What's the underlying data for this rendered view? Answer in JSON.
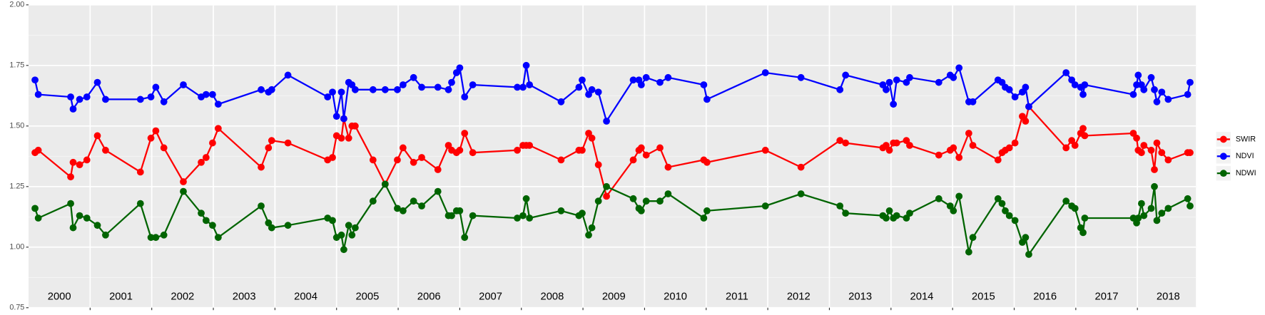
{
  "chart_data": {
    "type": "line",
    "x": [
      2000.105,
      2000.158,
      2000.684,
      2000.724,
      2000.829,
      2000.947,
      2001.118,
      2001.25,
      2001.816,
      2001.987,
      2002.066,
      2002.197,
      2002.513,
      2002.803,
      2002.882,
      2002.987,
      2003.079,
      2003.776,
      2003.895,
      2003.947,
      2004.211,
      2004.855,
      2004.934,
      2005.0,
      2005.079,
      2005.118,
      2005.197,
      2005.25,
      2005.303,
      2005.592,
      2005.789,
      2005.987,
      2006.079,
      2006.25,
      2006.382,
      2006.645,
      2006.816,
      2006.868,
      2006.947,
      2007.0,
      2007.079,
      2007.211,
      2007.934,
      2008.026,
      2008.079,
      2008.132,
      2008.645,
      2008.934,
      2008.987,
      2009.092,
      2009.145,
      2009.25,
      2009.382,
      2009.816,
      2009.908,
      2009.947,
      2010.026,
      2010.25,
      2010.382,
      2010.961,
      2011.013,
      2011.961,
      2012.539,
      2013.171,
      2013.263,
      2013.868,
      2013.921,
      2013.974,
      2014.039,
      2014.092,
      2014.25,
      2014.303,
      2014.776,
      2014.961,
      2015.013,
      2015.105,
      2015.263,
      2015.329,
      2015.737,
      2015.803,
      2015.855,
      2015.921,
      2016.013,
      2016.132,
      2016.184,
      2016.237,
      2016.842,
      2016.934,
      2016.987,
      2017.079,
      2017.118,
      2017.145,
      2017.934,
      2017.987,
      2018.013,
      2018.066,
      2018.105,
      2018.224,
      2018.276,
      2018.316,
      2018.395,
      2018.5,
      2018.816,
      2018.855
    ],
    "series": [
      {
        "name": "SWIR",
        "color": "#ff0000",
        "values": [
          1.39,
          1.4,
          1.29,
          1.35,
          1.34,
          1.36,
          1.46,
          1.4,
          1.31,
          1.45,
          1.48,
          1.41,
          1.27,
          1.35,
          1.37,
          1.43,
          1.49,
          1.33,
          1.41,
          1.44,
          1.43,
          1.36,
          1.37,
          1.46,
          1.45,
          1.53,
          1.45,
          1.5,
          1.5,
          1.36,
          1.26,
          1.36,
          1.41,
          1.35,
          1.37,
          1.32,
          1.42,
          1.4,
          1.39,
          1.4,
          1.47,
          1.39,
          1.4,
          1.42,
          1.42,
          1.42,
          1.36,
          1.4,
          1.4,
          1.47,
          1.45,
          1.34,
          1.21,
          1.36,
          1.4,
          1.41,
          1.38,
          1.41,
          1.33,
          1.36,
          1.35,
          1.4,
          1.33,
          1.44,
          1.43,
          1.41,
          1.42,
          1.4,
          1.43,
          1.43,
          1.44,
          1.42,
          1.38,
          1.4,
          1.41,
          1.37,
          1.47,
          1.42,
          1.36,
          1.39,
          1.4,
          1.41,
          1.43,
          1.54,
          1.52,
          1.58,
          1.41,
          1.44,
          1.42,
          1.47,
          1.49,
          1.46,
          1.47,
          1.45,
          1.4,
          1.39,
          1.42,
          1.4,
          1.32,
          1.43,
          1.39,
          1.36,
          1.39,
          1.39
        ]
      },
      {
        "name": "NDVI",
        "color": "#0000ff",
        "values": [
          1.69,
          1.63,
          1.62,
          1.57,
          1.61,
          1.62,
          1.68,
          1.61,
          1.61,
          1.62,
          1.66,
          1.6,
          1.67,
          1.62,
          1.63,
          1.63,
          1.59,
          1.65,
          1.64,
          1.65,
          1.71,
          1.62,
          1.64,
          1.54,
          1.64,
          1.53,
          1.68,
          1.67,
          1.65,
          1.65,
          1.65,
          1.65,
          1.67,
          1.7,
          1.66,
          1.66,
          1.65,
          1.68,
          1.72,
          1.74,
          1.62,
          1.67,
          1.66,
          1.66,
          1.75,
          1.67,
          1.6,
          1.66,
          1.69,
          1.63,
          1.65,
          1.64,
          1.52,
          1.69,
          1.69,
          1.67,
          1.7,
          1.68,
          1.7,
          1.67,
          1.61,
          1.72,
          1.7,
          1.65,
          1.71,
          1.67,
          1.65,
          1.68,
          1.59,
          1.69,
          1.68,
          1.7,
          1.68,
          1.71,
          1.7,
          1.74,
          1.6,
          1.6,
          1.69,
          1.68,
          1.66,
          1.65,
          1.62,
          1.64,
          1.66,
          1.58,
          1.72,
          1.69,
          1.67,
          1.66,
          1.63,
          1.67,
          1.63,
          1.67,
          1.71,
          1.67,
          1.65,
          1.7,
          1.65,
          1.6,
          1.64,
          1.61,
          1.63,
          1.68
        ]
      },
      {
        "name": "NDWI",
        "color": "#006400",
        "values": [
          1.16,
          1.12,
          1.18,
          1.08,
          1.13,
          1.12,
          1.09,
          1.05,
          1.18,
          1.04,
          1.04,
          1.05,
          1.23,
          1.14,
          1.11,
          1.09,
          1.04,
          1.17,
          1.1,
          1.08,
          1.09,
          1.12,
          1.11,
          1.04,
          1.05,
          0.99,
          1.09,
          1.05,
          1.08,
          1.19,
          1.26,
          1.16,
          1.15,
          1.19,
          1.17,
          1.23,
          1.13,
          1.13,
          1.15,
          1.15,
          1.04,
          1.13,
          1.12,
          1.13,
          1.2,
          1.12,
          1.15,
          1.13,
          1.14,
          1.05,
          1.08,
          1.19,
          1.25,
          1.2,
          1.16,
          1.15,
          1.19,
          1.19,
          1.22,
          1.12,
          1.15,
          1.17,
          1.22,
          1.17,
          1.14,
          1.13,
          1.12,
          1.15,
          1.12,
          1.13,
          1.12,
          1.14,
          1.2,
          1.17,
          1.15,
          1.21,
          0.98,
          1.04,
          1.2,
          1.18,
          1.15,
          1.13,
          1.11,
          1.02,
          1.04,
          0.97,
          1.19,
          1.17,
          1.16,
          1.08,
          1.06,
          1.12,
          1.12,
          1.1,
          1.12,
          1.18,
          1.13,
          1.16,
          1.25,
          1.11,
          1.14,
          1.16,
          1.2,
          1.17
        ]
      }
    ],
    "xlim": [
      2000,
      2018.95
    ],
    "xticks": [
      2001,
      2002,
      2003,
      2004,
      2005,
      2006,
      2007,
      2008,
      2009,
      2010,
      2011,
      2012,
      2013,
      2014,
      2015,
      2016,
      2017,
      2018
    ],
    "ylim": [
      0.75,
      2.0
    ],
    "yticks": [
      0.75,
      {
        "value": 1.0,
        "label": "1.00"
      },
      1.25,
      {
        "value": 1.5,
        "label": "1.50"
      },
      1.75,
      {
        "value": 2.0,
        "label": "2.00"
      }
    ],
    "yminor": [
      0.875,
      1.125,
      1.375,
      1.625,
      1.875
    ],
    "grid": true,
    "legend": "right",
    "annotations": [
      {
        "x": 2000.5,
        "y": 0.795,
        "label": "2000"
      },
      {
        "x": 2001.5,
        "y": 0.795,
        "label": "2001"
      },
      {
        "x": 2002.5,
        "y": 0.795,
        "label": "2002"
      },
      {
        "x": 2003.5,
        "y": 0.795,
        "label": "2003"
      },
      {
        "x": 2004.5,
        "y": 0.795,
        "label": "2004"
      },
      {
        "x": 2005.5,
        "y": 0.795,
        "label": "2005"
      },
      {
        "x": 2006.5,
        "y": 0.795,
        "label": "2006"
      },
      {
        "x": 2007.5,
        "y": 0.795,
        "label": "2007"
      },
      {
        "x": 2008.5,
        "y": 0.795,
        "label": "2008"
      },
      {
        "x": 2009.5,
        "y": 0.795,
        "label": "2009"
      },
      {
        "x": 2010.5,
        "y": 0.795,
        "label": "2010"
      },
      {
        "x": 2011.5,
        "y": 0.795,
        "label": "2011"
      },
      {
        "x": 2012.5,
        "y": 0.795,
        "label": "2012"
      },
      {
        "x": 2013.5,
        "y": 0.795,
        "label": "2013"
      },
      {
        "x": 2014.5,
        "y": 0.795,
        "label": "2014"
      },
      {
        "x": 2015.5,
        "y": 0.795,
        "label": "2015"
      },
      {
        "x": 2016.5,
        "y": 0.795,
        "label": "2016"
      },
      {
        "x": 2017.5,
        "y": 0.795,
        "label": "2017"
      },
      {
        "x": 2018.5,
        "y": 0.795,
        "label": "2018"
      }
    ]
  }
}
